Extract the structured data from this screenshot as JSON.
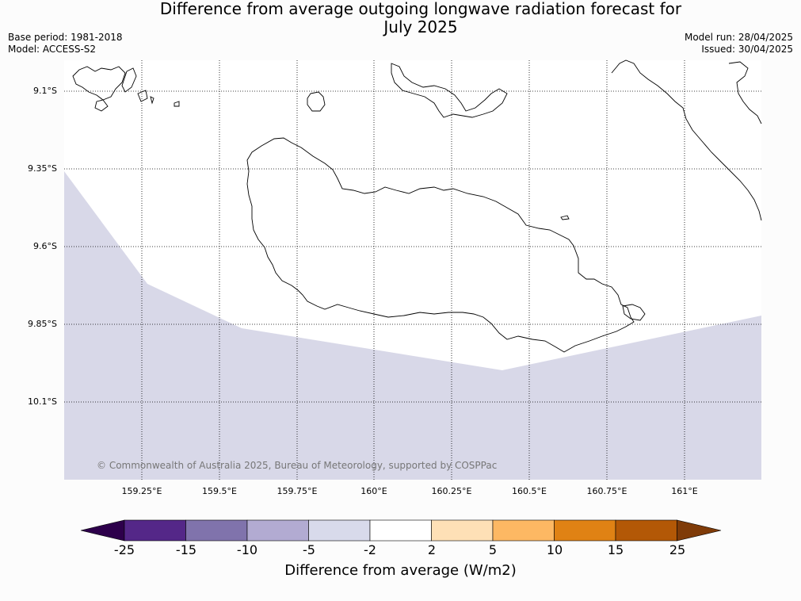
{
  "header": {
    "title_line1": "Difference from average outgoing longwave radiation forecast for",
    "title_line2": "July 2025",
    "base_period": "Base period: 1981-2018",
    "model": "Model: ACCESS-S2",
    "model_run": "Model run: 28/04/2025",
    "issued": "Issued: 30/04/2025"
  },
  "map": {
    "lat_labels": [
      "9.1°S",
      "9.35°S",
      "9.6°S",
      "9.85°S",
      "10.1°S"
    ],
    "lon_labels": [
      "159.25°E",
      "159.5°E",
      "159.75°E",
      "160°E",
      "160.25°E",
      "160.5°E",
      "160.75°E",
      "161°E"
    ],
    "copyright": "© Commonwealth of Australia 2025, Bureau of Meteorology, supported by COSPPac",
    "shaded_category": "-5 to -2",
    "shaded_color": "#d8d8e8"
  },
  "colorbar": {
    "label": "Difference from average (W/m2)",
    "ticks": [
      "-25",
      "-15",
      "-10",
      "-5",
      "-2",
      "2",
      "5",
      "10",
      "15",
      "25"
    ],
    "colors": [
      "#2d004b",
      "#542788",
      "#8073ac",
      "#b2abd2",
      "#d8daeb",
      "#ffffff",
      "#fee0b6",
      "#fdb863",
      "#e08214",
      "#b35806",
      "#7f3b08"
    ]
  }
}
